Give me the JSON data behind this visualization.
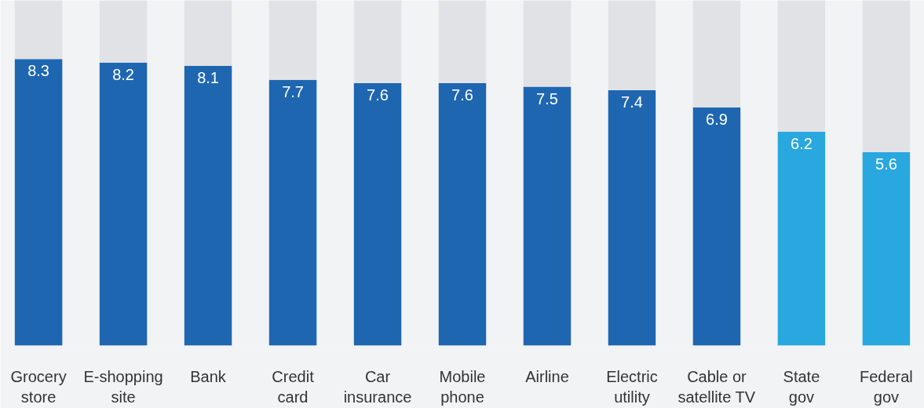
{
  "chart_data": {
    "type": "bar",
    "stacked": true,
    "ylim": [
      0,
      10
    ],
    "grid": false,
    "categories": [
      "Grocery\nstore",
      "E-shopping\nsite",
      "Bank",
      "Credit\ncard",
      "Car\ninsurance",
      "Mobile\nphone",
      "Airline",
      "Electric\nutility",
      "Cable or\nsatellite TV",
      "State\ngov",
      "Federal\ngov"
    ],
    "series": [
      {
        "colors": [
          "#1f66b1",
          "#1f66b1",
          "#1f66b1",
          "#1f66b1",
          "#1f66b1",
          "#1f66b1",
          "#1f66b1",
          "#1f66b1",
          "#1f66b1",
          "#29a7df",
          "#29a7df"
        ],
        "values": [
          8.3,
          8.2,
          8.1,
          7.7,
          7.6,
          7.6,
          7.5,
          7.4,
          6.9,
          6.2,
          5.6
        ],
        "value_labels": [
          "8.3",
          "8.2",
          "8.1",
          "7.7",
          "7.6",
          "7.6",
          "7.5",
          "7.4",
          "6.9",
          "6.2",
          "5.6"
        ]
      },
      {
        "color": "#e1e2e5",
        "values": [
          1.7,
          1.8,
          1.9,
          2.3,
          2.4,
          2.4,
          2.5,
          2.6,
          3.1,
          3.8,
          4.4
        ]
      }
    ]
  }
}
